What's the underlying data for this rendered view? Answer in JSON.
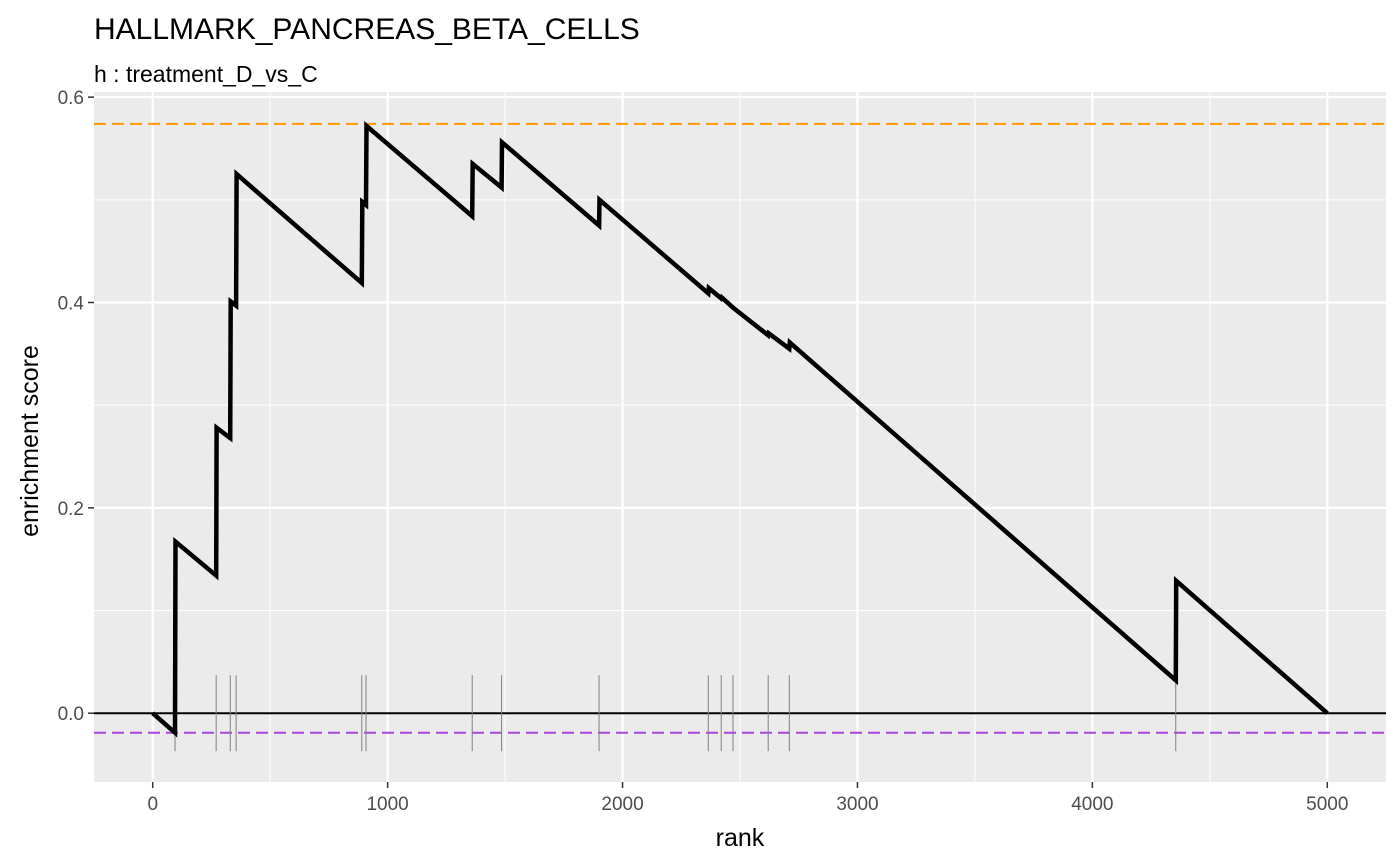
{
  "chart_data": {
    "type": "line",
    "title": "HALLMARK_PANCREAS_BETA_CELLS",
    "subtitle": "h : treatment_D_vs_C",
    "xlabel": "rank",
    "ylabel": "enrichment score",
    "xlim": [
      -250,
      5250
    ],
    "ylim": [
      -0.067,
      0.605
    ],
    "x_ticks": [
      0,
      1000,
      2000,
      3000,
      4000,
      5000
    ],
    "x_minor_ticks": [
      500,
      1500,
      2500,
      3500,
      4500
    ],
    "y_ticks": [
      0.0,
      0.2,
      0.4,
      0.6
    ],
    "y_minor_ticks": [
      0.1,
      0.3,
      0.5
    ],
    "x_tick_labels": [
      "0",
      "1000",
      "2000",
      "3000",
      "4000",
      "5000"
    ],
    "y_tick_labels": [
      "0.0",
      "0.2",
      "0.4",
      "0.6"
    ],
    "grid": true,
    "legend": "none",
    "series": [
      {
        "color": "#000000",
        "points": [
          [
            0,
            0.0
          ],
          [
            95,
            -0.019
          ],
          [
            97,
            0.167
          ],
          [
            270,
            0.134
          ],
          [
            272,
            0.278
          ],
          [
            330,
            0.268
          ],
          [
            332,
            0.401
          ],
          [
            355,
            0.397
          ],
          [
            357,
            0.525
          ],
          [
            890,
            0.419
          ],
          [
            892,
            0.498
          ],
          [
            908,
            0.495
          ],
          [
            910,
            0.572
          ],
          [
            1360,
            0.484
          ],
          [
            1362,
            0.535
          ],
          [
            1485,
            0.512
          ],
          [
            1487,
            0.556
          ],
          [
            1900,
            0.475
          ],
          [
            1902,
            0.5
          ],
          [
            2365,
            0.409
          ],
          [
            2367,
            0.414
          ],
          [
            2420,
            0.404
          ],
          [
            2422,
            0.405
          ],
          [
            2470,
            0.395
          ],
          [
            2620,
            0.368
          ],
          [
            2622,
            0.37
          ],
          [
            2710,
            0.355
          ],
          [
            2712,
            0.361
          ],
          [
            4355,
            0.032
          ],
          [
            4357,
            0.129
          ],
          [
            5000,
            0.0
          ]
        ]
      }
    ],
    "reference_lines": [
      {
        "axis": "y",
        "value": 0.574,
        "color": "#ff9900",
        "style": "dashed"
      },
      {
        "axis": "y",
        "value": -0.019,
        "color": "#aa44dd",
        "style": "dashed"
      },
      {
        "axis": "y",
        "value": 0.0,
        "color": "#000000",
        "style": "solid"
      }
    ],
    "gene_hits": {
      "positions": [
        95,
        270,
        330,
        355,
        890,
        908,
        1360,
        1485,
        1900,
        2365,
        2420,
        2470,
        2620,
        2710,
        4355
      ],
      "ymin": -0.037,
      "ymax": 0.037,
      "color": "#808080"
    }
  }
}
